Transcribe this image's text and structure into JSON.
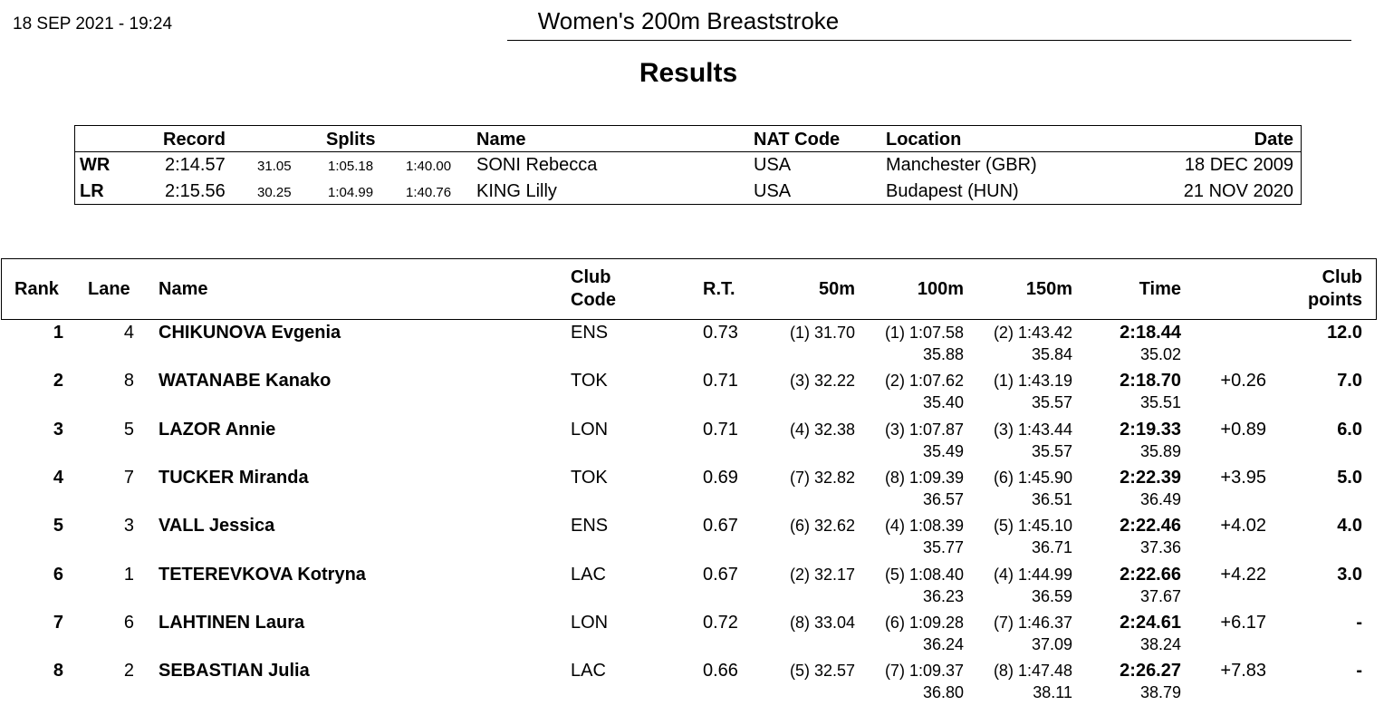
{
  "header": {
    "datetime": "18 SEP 2021 - 19:24",
    "event_title": "Women's 200m Breaststroke",
    "section_heading": "Results"
  },
  "records": {
    "headers": {
      "record": "Record",
      "splits": "Splits",
      "name": "Name",
      "nat_code": "NAT Code",
      "location": "Location",
      "date": "Date"
    },
    "rows": [
      {
        "type": "WR",
        "time": "2:14.57",
        "split1": "31.05",
        "split2": "1:05.18",
        "split3": "1:40.00",
        "name": "SONI Rebecca",
        "nat": "USA",
        "location": "Manchester (GBR)",
        "date": "18 DEC 2009"
      },
      {
        "type": "LR",
        "time": "2:15.56",
        "split1": "30.25",
        "split2": "1:04.99",
        "split3": "1:40.76",
        "name": "KING Lilly",
        "nat": "USA",
        "location": "Budapest (HUN)",
        "date": "21 NOV 2020"
      }
    ]
  },
  "results": {
    "headers": {
      "rank": "Rank",
      "lane": "Lane",
      "name": "Name",
      "club_code_1": "Club",
      "club_code_2": "Code",
      "rt": "R.T.",
      "m50": "50m",
      "m100": "100m",
      "m150": "150m",
      "time": "Time",
      "club_points_1": "Club",
      "club_points_2": "points"
    },
    "rows": [
      {
        "rank": "1",
        "lane": "4",
        "name": "CHIKUNOVA Evgenia",
        "club": "ENS",
        "rt": "0.73",
        "m50": "(1) 31.70",
        "m100": "(1) 1:07.58",
        "m150": "(2) 1:43.42",
        "time": "2:18.44",
        "behind": "",
        "points": "12.0",
        "lap100": "35.88",
        "lap150": "35.84",
        "lap200": "35.02"
      },
      {
        "rank": "2",
        "lane": "8",
        "name": "WATANABE Kanako",
        "club": "TOK",
        "rt": "0.71",
        "m50": "(3) 32.22",
        "m100": "(2) 1:07.62",
        "m150": "(1) 1:43.19",
        "time": "2:18.70",
        "behind": "+0.26",
        "points": "7.0",
        "lap100": "35.40",
        "lap150": "35.57",
        "lap200": "35.51"
      },
      {
        "rank": "3",
        "lane": "5",
        "name": "LAZOR Annie",
        "club": "LON",
        "rt": "0.71",
        "m50": "(4) 32.38",
        "m100": "(3) 1:07.87",
        "m150": "(3) 1:43.44",
        "time": "2:19.33",
        "behind": "+0.89",
        "points": "6.0",
        "lap100": "35.49",
        "lap150": "35.57",
        "lap200": "35.89"
      },
      {
        "rank": "4",
        "lane": "7",
        "name": "TUCKER Miranda",
        "club": "TOK",
        "rt": "0.69",
        "m50": "(7) 32.82",
        "m100": "(8) 1:09.39",
        "m150": "(6) 1:45.90",
        "time": "2:22.39",
        "behind": "+3.95",
        "points": "5.0",
        "lap100": "36.57",
        "lap150": "36.51",
        "lap200": "36.49"
      },
      {
        "rank": "5",
        "lane": "3",
        "name": "VALL Jessica",
        "club": "ENS",
        "rt": "0.67",
        "m50": "(6) 32.62",
        "m100": "(4) 1:08.39",
        "m150": "(5) 1:45.10",
        "time": "2:22.46",
        "behind": "+4.02",
        "points": "4.0",
        "lap100": "35.77",
        "lap150": "36.71",
        "lap200": "37.36"
      },
      {
        "rank": "6",
        "lane": "1",
        "name": "TETEREVKOVA Kotryna",
        "club": "LAC",
        "rt": "0.67",
        "m50": "(2) 32.17",
        "m100": "(5) 1:08.40",
        "m150": "(4) 1:44.99",
        "time": "2:22.66",
        "behind": "+4.22",
        "points": "3.0",
        "lap100": "36.23",
        "lap150": "36.59",
        "lap200": "37.67"
      },
      {
        "rank": "7",
        "lane": "6",
        "name": "LAHTINEN Laura",
        "club": "LON",
        "rt": "0.72",
        "m50": "(8) 33.04",
        "m100": "(6) 1:09.28",
        "m150": "(7) 1:46.37",
        "time": "2:24.61",
        "behind": "+6.17",
        "points": "-",
        "lap100": "36.24",
        "lap150": "37.09",
        "lap200": "38.24"
      },
      {
        "rank": "8",
        "lane": "2",
        "name": "SEBASTIAN Julia",
        "club": "LAC",
        "rt": "0.66",
        "m50": "(5) 32.57",
        "m100": "(7) 1:09.37",
        "m150": "(8) 1:47.48",
        "time": "2:26.27",
        "behind": "+7.83",
        "points": "-",
        "lap100": "36.80",
        "lap150": "38.11",
        "lap200": "38.79"
      }
    ]
  }
}
